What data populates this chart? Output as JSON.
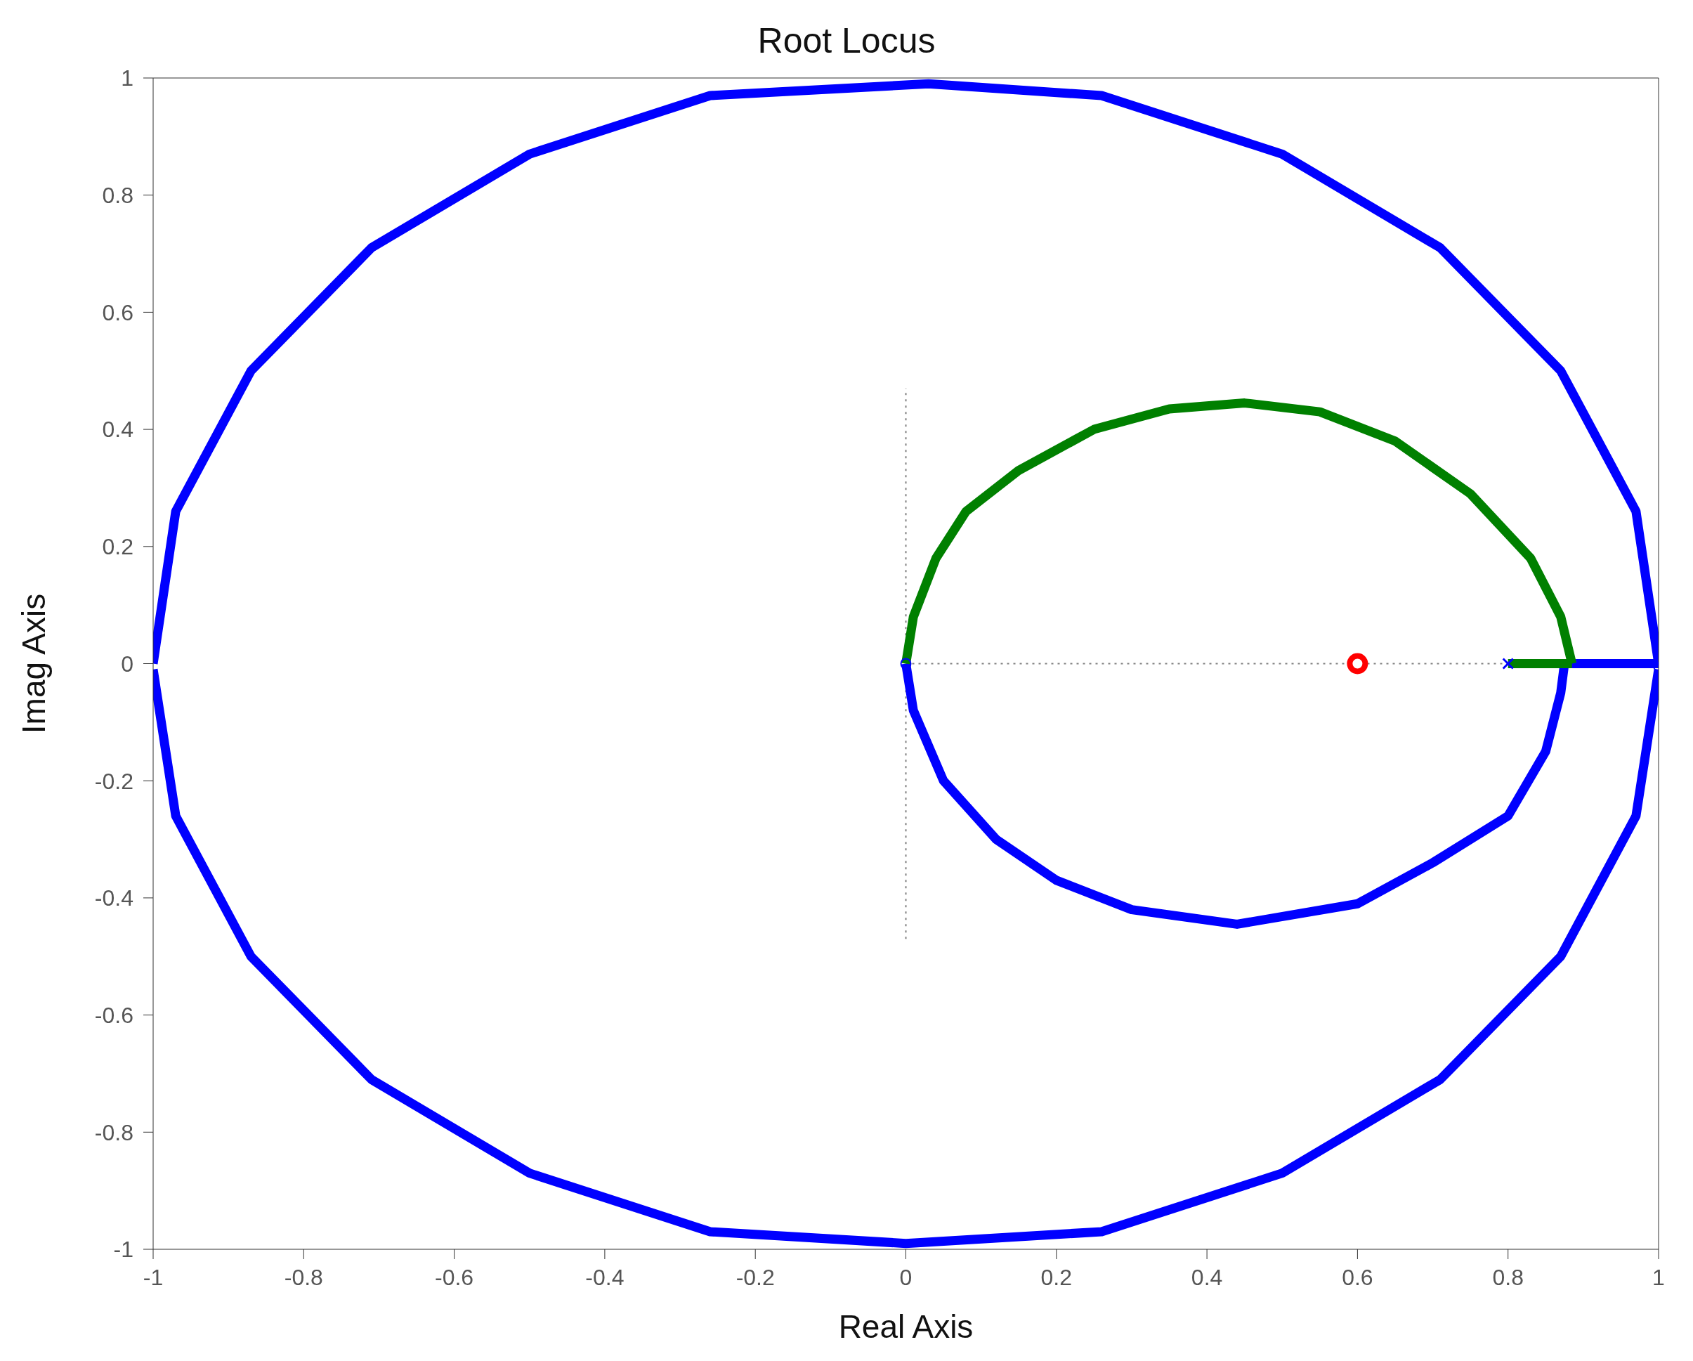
{
  "chart_data": {
    "type": "line",
    "title": "Root Locus",
    "xlabel": "Real Axis",
    "ylabel": "Imag Axis",
    "xlim": [
      -1,
      1
    ],
    "ylim": [
      -1,
      1
    ],
    "xticks": [
      -1,
      -0.8,
      -0.6,
      -0.4,
      -0.2,
      0,
      0.2,
      0.4,
      0.6,
      0.8,
      1
    ],
    "yticks": [
      -1,
      -0.8,
      -0.6,
      -0.4,
      -0.2,
      0,
      0.2,
      0.4,
      0.6,
      0.8,
      1
    ],
    "grid": false,
    "series": [
      {
        "type": "line",
        "color": "#808080",
        "line_style": "dotted",
        "marker": "none",
        "x": [
          0,
          0
        ],
        "values": [
          -0.47,
          0.47
        ]
      },
      {
        "type": "line",
        "color": "#808080",
        "line_style": "dotted",
        "marker": "none",
        "x": [
          0,
          1
        ],
        "values": [
          0,
          0
        ]
      },
      {
        "type": "line",
        "color": "#0000ff",
        "line_style": "solid",
        "marker": "none",
        "x": [
          -1,
          -0.97,
          -0.87,
          -0.71,
          -0.5,
          -0.26,
          0.03,
          0.26,
          0.5,
          0.71,
          0.87,
          0.97,
          1
        ],
        "values": [
          0,
          0.26,
          0.5,
          0.71,
          0.87,
          0.97,
          0.99,
          0.97,
          0.87,
          0.71,
          0.5,
          0.26,
          0
        ]
      },
      {
        "type": "line",
        "color": "#0000ff",
        "line_style": "solid",
        "marker": "none",
        "x": [
          -1,
          -0.97,
          -0.87,
          -0.71,
          -0.5,
          -0.26,
          0,
          0.26,
          0.5,
          0.71,
          0.87,
          0.97,
          1
        ],
        "values": [
          -0.01,
          -0.26,
          -0.5,
          -0.71,
          -0.87,
          -0.97,
          -0.99,
          -0.97,
          -0.87,
          -0.71,
          -0.5,
          -0.26,
          -0.01
        ]
      },
      {
        "type": "line",
        "color": "#0000ff",
        "line_style": "solid",
        "marker": "none",
        "x": [
          0,
          0.01,
          0.05,
          0.12,
          0.2,
          0.3,
          0.44,
          0.6,
          0.7,
          0.8,
          0.85,
          0.87,
          0.875
        ],
        "values": [
          0,
          -0.08,
          -0.2,
          -0.3,
          -0.37,
          -0.42,
          -0.445,
          -0.41,
          -0.34,
          -0.26,
          -0.15,
          -0.05,
          0
        ]
      },
      {
        "type": "line",
        "color": "#0000ff",
        "line_style": "solid",
        "marker": "none",
        "x": [
          0.88,
          1
        ],
        "values": [
          0,
          0
        ]
      },
      {
        "type": "line",
        "color": "#008000",
        "line_style": "solid",
        "marker": "none",
        "x": [
          0,
          0.01,
          0.04,
          0.08,
          0.15,
          0.25,
          0.35,
          0.45,
          0.55,
          0.65,
          0.75,
          0.83,
          0.87,
          0.885
        ],
        "values": [
          0,
          0.08,
          0.18,
          0.26,
          0.33,
          0.4,
          0.435,
          0.445,
          0.43,
          0.38,
          0.29,
          0.18,
          0.08,
          0
        ]
      },
      {
        "color": "#008000",
        "line_style": "solid",
        "marker": "none",
        "x": [
          0.8,
          0.885
        ],
        "values": [
          0,
          0
        ]
      },
      {
        "type": "scatter",
        "color": "#0000ff",
        "marker": "circle",
        "x": [
          0
        ],
        "values": [
          0
        ]
      },
      {
        "type": "scatter",
        "color": "#0000ff",
        "marker": "cross",
        "x": [
          0.8,
          1
        ],
        "values": [
          0,
          0
        ]
      },
      {
        "type": "scatter",
        "color": "#ff0000",
        "marker": "circle",
        "x": [
          0.6
        ],
        "values": [
          0
        ]
      }
    ]
  }
}
